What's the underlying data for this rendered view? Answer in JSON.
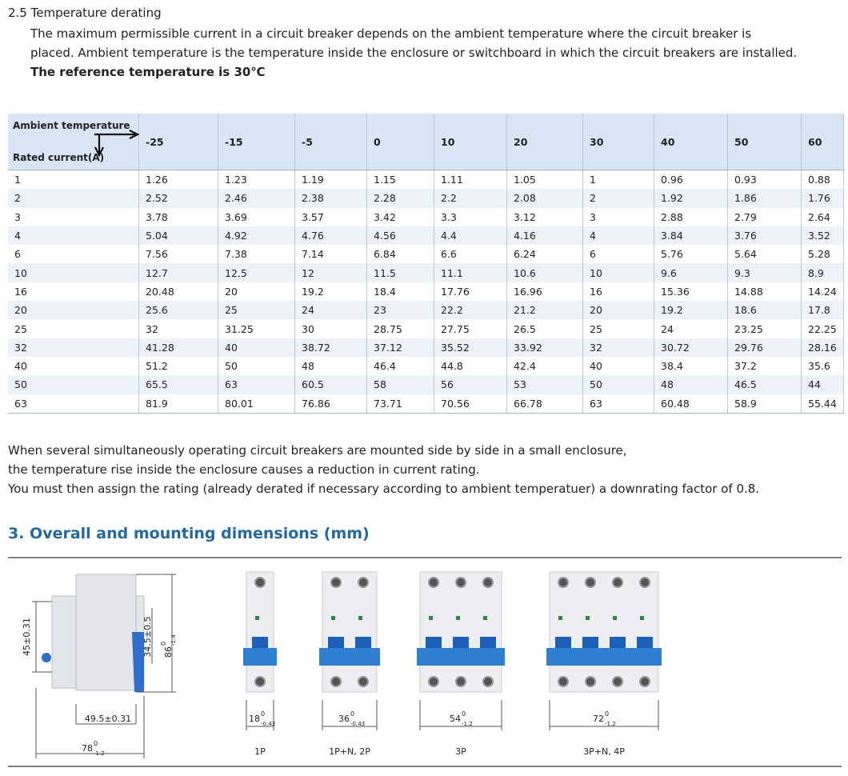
{
  "section": {
    "title": "2.5 Temperature derating",
    "lines": [
      "The maximum permissible current in a circuit breaker depends on the ambient temperature where the circuit breaker is",
      "placed. Ambient temperature is the temperature inside the enclosure or switchboard in which the circuit breakers are installed."
    ],
    "bold": "The reference temperature is 30℃"
  },
  "table": {
    "corner_top": "Ambient temperature",
    "corner_bottom": "Rated current(A)",
    "columns": [
      "-25",
      "-15",
      "-5",
      "0",
      "10",
      "20",
      "30",
      "40",
      "50",
      "60"
    ],
    "rows": [
      [
        "1",
        "1.26",
        "1.23",
        "1.19",
        "1.15",
        "1.11",
        "1.05",
        "1",
        "0.96",
        "0.93",
        "0.88"
      ],
      [
        "2",
        "2.52",
        "2.46",
        "2.38",
        "2.28",
        "2.2",
        "2.08",
        "2",
        "1.92",
        "1.86",
        "1.76"
      ],
      [
        "3",
        "3.78",
        "3.69",
        "3.57",
        "3.42",
        "3.3",
        "3.12",
        "3",
        "2.88",
        "2.79",
        "2.64"
      ],
      [
        "4",
        "5.04",
        "4.92",
        "4.76",
        "4.56",
        "4.4",
        "4.16",
        "4",
        "3.84",
        "3.76",
        "3.52"
      ],
      [
        "6",
        "7.56",
        "7.38",
        "7.14",
        "6.84",
        "6.6",
        "6.24",
        "6",
        "5.76",
        "5.64",
        "5.28"
      ],
      [
        "10",
        "12.7",
        "12.5",
        "12",
        "11.5",
        "11.1",
        "10.6",
        "10",
        "9.6",
        "9.3",
        "8.9"
      ],
      [
        "16",
        "20.48",
        "20",
        "19.2",
        "18.4",
        "17.76",
        "16.96",
        "16",
        "15.36",
        "14.88",
        "14.24"
      ],
      [
        "20",
        "25.6",
        "25",
        "24",
        "23",
        "22.2",
        "21.2",
        "20",
        "19.2",
        "18.6",
        "17.8"
      ],
      [
        "25",
        "32",
        "31.25",
        "30",
        "28.75",
        "27.75",
        "26.5",
        "25",
        "24",
        "23.25",
        "22.25"
      ],
      [
        "32",
        "41.28",
        "40",
        "38.72",
        "37.12",
        "35.52",
        "33.92",
        "32",
        "30.72",
        "29.76",
        "28.16"
      ],
      [
        "40",
        "51.2",
        "50",
        "48",
        "46.4",
        "44.8",
        "42.4",
        "40",
        "38.4",
        "37.2",
        "35.6"
      ],
      [
        "50",
        "65.5",
        "63",
        "60.5",
        "58",
        "56",
        "53",
        "50",
        "48",
        "46.5",
        "44"
      ],
      [
        "63",
        "81.9",
        "80.01",
        "76.86",
        "73.71",
        "70.56",
        "66.78",
        "63",
        "60.48",
        "58.9",
        "55.44"
      ]
    ]
  },
  "notes": [
    "When several simultaneously operating circuit breakers are mounted side by side in a small enclosure,",
    "the temperature rise inside the enclosure causes a reduction in current rating.",
    "You must then assign the rating (already derated if necessary according to ambient temperatuer) a downrating factor of 0.8."
  ],
  "dimensions": {
    "title": "3. Overall and mounting dimensions (mm)",
    "side": {
      "height": "45±0.31",
      "inner": "34.5±0.5",
      "total": {
        "base": "86",
        "upper": "0",
        "lower": "-1.4"
      },
      "depth": "49.5±0.31",
      "width": {
        "base": "78",
        "upper": "0",
        "lower": "-1.2"
      }
    },
    "products": [
      {
        "width": {
          "base": "18",
          "upper": "0",
          "lower": "-0.43"
        },
        "caption": "1P"
      },
      {
        "width": {
          "base": "36",
          "upper": "0",
          "lower": "-0.43"
        },
        "caption": "1P+N, 2P"
      },
      {
        "width": {
          "base": "54",
          "upper": "0",
          "lower": "-1.2"
        },
        "caption": "3P"
      },
      {
        "width": {
          "base": "72",
          "upper": "0",
          "lower": "-1.2"
        },
        "caption": "3P+N, 4P"
      }
    ]
  }
}
